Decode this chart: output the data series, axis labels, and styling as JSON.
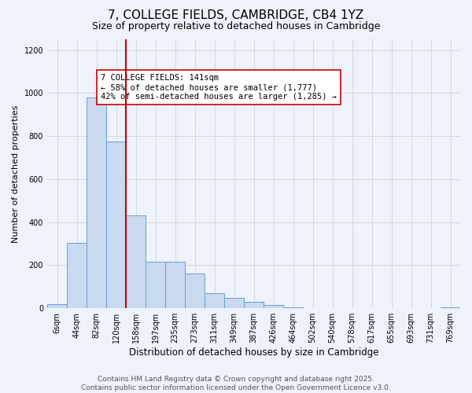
{
  "title": "7, COLLEGE FIELDS, CAMBRIDGE, CB4 1YZ",
  "subtitle": "Size of property relative to detached houses in Cambridge",
  "xlabel": "Distribution of detached houses by size in Cambridge",
  "ylabel": "Number of detached properties",
  "categories": [
    "6sqm",
    "44sqm",
    "82sqm",
    "120sqm",
    "158sqm",
    "197sqm",
    "235sqm",
    "273sqm",
    "311sqm",
    "349sqm",
    "387sqm",
    "426sqm",
    "464sqm",
    "502sqm",
    "540sqm",
    "578sqm",
    "617sqm",
    "655sqm",
    "693sqm",
    "731sqm",
    "769sqm"
  ],
  "values": [
    20,
    305,
    980,
    775,
    430,
    215,
    215,
    163,
    70,
    48,
    30,
    15,
    3,
    1,
    0,
    0,
    0,
    0,
    0,
    0,
    5
  ],
  "bar_color": "#c9d9f0",
  "bar_edge_color": "#6a9fd8",
  "vline_x": 3.5,
  "vline_color": "#cc0000",
  "annotation_text": "7 COLLEGE FIELDS: 141sqm\n← 58% of detached houses are smaller (1,777)\n42% of semi-detached houses are larger (1,285) →",
  "box_color": "#ffffff",
  "box_edge_color": "#cc0000",
  "ylim": [
    0,
    1250
  ],
  "yticks": [
    0,
    200,
    400,
    600,
    800,
    1000,
    1200
  ],
  "grid_color": "#d0d8e8",
  "background_color": "#eef2fb",
  "footer1": "Contains HM Land Registry data © Crown copyright and database right 2025.",
  "footer2": "Contains public sector information licensed under the Open Government Licence v3.0.",
  "title_fontsize": 11,
  "subtitle_fontsize": 9,
  "xlabel_fontsize": 8.5,
  "ylabel_fontsize": 8,
  "annotation_fontsize": 7.5,
  "tick_fontsize": 7,
  "footer_fontsize": 6.5
}
